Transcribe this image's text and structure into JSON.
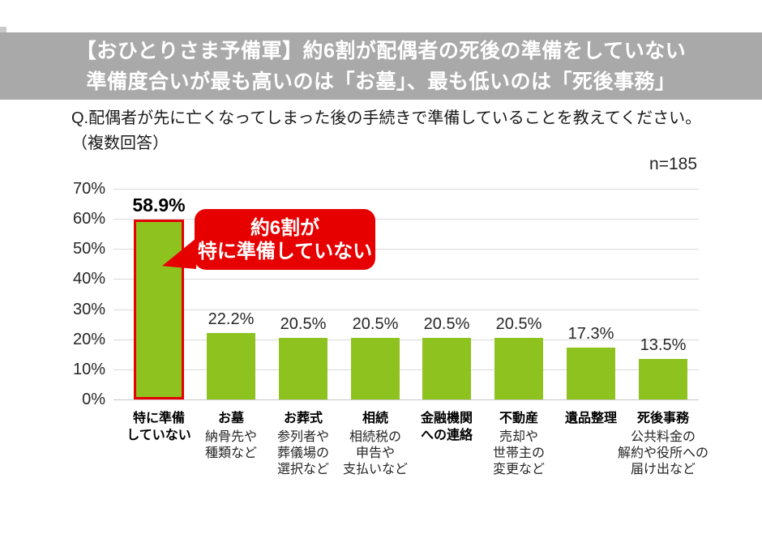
{
  "header": {
    "line1": "【おひとりさま予備軍】約6割が配偶者の死後の準備をしていない",
    "line2": "準備度合いが最も高いのは「お墓」、最も低いのは「死後事務」"
  },
  "question": {
    "line1": "Q.配偶者が先に亡くなってしまった後の手続きで準備していることを教えてください。",
    "line2": "（複数回答）"
  },
  "sample_size": "n=185",
  "callout": {
    "line1": "約6割が",
    "line2": "特に準備していない"
  },
  "colors": {
    "band_bg": "#a9a9a9",
    "bar_fill": "#8dc21f",
    "highlight_red": "#e60000",
    "gridline": "#d9d9d9",
    "text": "#262626"
  },
  "chart_data": {
    "type": "bar",
    "title": "配偶者の死後の手続きで準備していること",
    "categories": [
      "特に準備していない",
      "お墓",
      "お葬式",
      "相続",
      "金融機関への連絡",
      "不動産",
      "遺品整理",
      "死後事務"
    ],
    "values": [
      58.9,
      22.2,
      20.5,
      20.5,
      20.5,
      20.5,
      17.3,
      13.5
    ],
    "value_labels": [
      "58.9%",
      "22.2%",
      "20.5%",
      "20.5%",
      "20.5%",
      "20.5%",
      "17.3%",
      "13.5%"
    ],
    "category_name_lines": [
      [
        "特に準備",
        "していない"
      ],
      [
        "お墓"
      ],
      [
        "お葬式"
      ],
      [
        "相続"
      ],
      [
        "金融機関",
        "への連絡"
      ],
      [
        "不動産"
      ],
      [
        "遺品整理"
      ],
      [
        "死後事務"
      ]
    ],
    "category_desc_lines": [
      [],
      [
        "納骨先や",
        "種類など"
      ],
      [
        "参列者や",
        "葬儀場の",
        "選択など"
      ],
      [
        "相続税の",
        "申告や",
        "支払いなど"
      ],
      [],
      [
        "売却や",
        "世帯主の",
        "変更など"
      ],
      [],
      [
        "公共料金の",
        "解約や役所への",
        "届け出など"
      ]
    ],
    "ylim": [
      0,
      70
    ],
    "ytick_labels": [
      "0%",
      "10%",
      "20%",
      "30%",
      "40%",
      "50%",
      "60%",
      "70%"
    ],
    "ytick_step": 10,
    "grid": true,
    "legend": false,
    "highlight_index": 0,
    "annotation": "約6割が特に準備していない",
    "sample_size": "n=185"
  }
}
